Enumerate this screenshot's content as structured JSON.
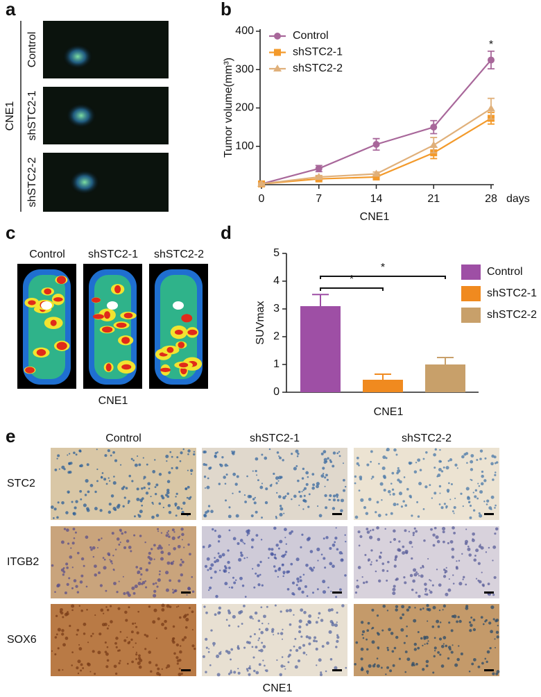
{
  "panel_labels": [
    "a",
    "b",
    "c",
    "d",
    "e"
  ],
  "panel_a": {
    "group": "CNE1",
    "rows": [
      "Control",
      "shSTC2-1",
      "shSTC2-2"
    ]
  },
  "panel_c": {
    "columns": [
      "Control",
      "shSTC2-1",
      "shSTC2-2"
    ],
    "xlabel": "CNE1"
  },
  "panel_e": {
    "columns": [
      "Control",
      "shSTC2-1",
      "shSTC2-2"
    ],
    "rows": [
      "STC2",
      "ITGB2",
      "SOX6"
    ],
    "xlabel": "CNE1"
  },
  "chart_data": [
    {
      "type": "line",
      "ylabel": "Tumor volume(mm³)",
      "xlabel": "CNE1",
      "x_unit_label": "days",
      "x": [
        0,
        7,
        14,
        21,
        28
      ],
      "xlim": [
        0,
        28
      ],
      "xticks": [
        0,
        7,
        14,
        21,
        28
      ],
      "ylim": [
        0,
        400
      ],
      "yticks": [
        100,
        200,
        300,
        400
      ],
      "series": [
        {
          "name": "Control",
          "color": "#a8679a",
          "marker": "circle",
          "values": [
            2,
            42,
            105,
            150,
            325
          ],
          "errors": [
            3,
            8,
            15,
            17,
            23
          ]
        },
        {
          "name": "shSTC2-1",
          "color": "#f39a2b",
          "marker": "square",
          "values": [
            2,
            15,
            20,
            83,
            173
          ],
          "errors": [
            2,
            4,
            5,
            15,
            15
          ]
        },
        {
          "name": "shSTC2-2",
          "color": "#e0b07a",
          "marker": "triangle",
          "values": [
            2,
            20,
            28,
            103,
            198
          ],
          "errors": [
            2,
            4,
            5,
            20,
            27
          ]
        }
      ],
      "annotations": [
        "*"
      ],
      "legend": "upper-left"
    },
    {
      "type": "bar",
      "ylabel": "SUVmax",
      "xlabel": "CNE1",
      "ylim": [
        0,
        5
      ],
      "yticks": [
        0,
        1,
        2,
        3,
        4,
        5
      ],
      "series": [
        {
          "name": "Control",
          "color": "#9e4fa5",
          "values": [
            3.1
          ],
          "errors": [
            0.42
          ]
        },
        {
          "name": "shSTC2-1",
          "color": "#f08a1f",
          "values": [
            0.45
          ],
          "errors": [
            0.2
          ]
        },
        {
          "name": "shSTC2-2",
          "color": "#c8a06a",
          "values": [
            1.0
          ],
          "errors": [
            0.25
          ]
        }
      ],
      "annotations": [
        "*",
        "*"
      ],
      "legend": "right"
    }
  ]
}
